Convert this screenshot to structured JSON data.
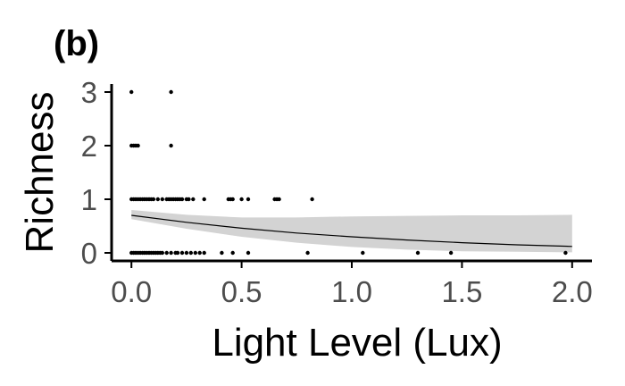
{
  "panel_label": "(b)",
  "colors": {
    "points": "#000000",
    "fit_line": "#000000",
    "ribbon": "#d3d3d3",
    "axis": "#000000",
    "tick_text": "#4d4d4d"
  },
  "chart_data": {
    "type": "scatter",
    "title": "",
    "xlabel": "Light Level (Lux)",
    "ylabel": "Richness",
    "xlim": [
      -0.09,
      2.09
    ],
    "ylim": [
      -0.15,
      3.15
    ],
    "xticks": [
      0.0,
      0.5,
      1.0,
      1.5,
      2.0
    ],
    "xtick_labels": [
      "0.0",
      "0.5",
      "1.0",
      "1.5",
      "2.0"
    ],
    "yticks": [
      0,
      1,
      2,
      3
    ],
    "ytick_labels": [
      "0",
      "1",
      "2",
      "3"
    ],
    "grid": false,
    "legend": "none",
    "points": {
      "x": [
        0.0,
        0.18,
        0.0,
        0.01,
        0.02,
        0.03,
        0.18,
        0.0,
        0.01,
        0.02,
        0.03,
        0.04,
        0.05,
        0.06,
        0.07,
        0.08,
        0.09,
        0.1,
        0.12,
        0.14,
        0.16,
        0.17,
        0.18,
        0.19,
        0.2,
        0.21,
        0.22,
        0.23,
        0.25,
        0.26,
        0.28,
        0.33,
        0.44,
        0.45,
        0.46,
        0.5,
        0.53,
        0.65,
        0.66,
        0.67,
        0.82,
        0.0,
        0.01,
        0.02,
        0.03,
        0.04,
        0.05,
        0.06,
        0.07,
        0.08,
        0.09,
        0.1,
        0.11,
        0.12,
        0.13,
        0.14,
        0.16,
        0.18,
        0.2,
        0.21,
        0.23,
        0.25,
        0.27,
        0.29,
        0.31,
        0.33,
        0.41,
        0.46,
        0.53,
        0.8,
        1.05,
        1.3,
        1.45,
        1.97
      ],
      "y": [
        3,
        3,
        2,
        2,
        2,
        2,
        2,
        1,
        1,
        1,
        1,
        1,
        1,
        1,
        1,
        1,
        1,
        1,
        1,
        1,
        1,
        1,
        1,
        1,
        1,
        1,
        1,
        1,
        1,
        1,
        1,
        1,
        1,
        1,
        1,
        1,
        1,
        1,
        1,
        1,
        1,
        0,
        0,
        0,
        0,
        0,
        0,
        0,
        0,
        0,
        0,
        0,
        0,
        0,
        0,
        0,
        0,
        0,
        0,
        0,
        0,
        0,
        0,
        0,
        0,
        0,
        0,
        0,
        0,
        0,
        0,
        0,
        0,
        0
      ]
    },
    "fit": {
      "x": [
        0.0,
        0.25,
        0.5,
        0.75,
        1.0,
        1.25,
        1.5,
        1.75,
        2.0
      ],
      "y": [
        0.7,
        0.57,
        0.46,
        0.37,
        0.3,
        0.24,
        0.19,
        0.15,
        0.12
      ],
      "lower": [
        0.63,
        0.45,
        0.3,
        0.19,
        0.11,
        0.06,
        0.03,
        0.02,
        0.01
      ],
      "upper": [
        0.8,
        0.71,
        0.66,
        0.66,
        0.68,
        0.69,
        0.7,
        0.7,
        0.71
      ]
    }
  }
}
